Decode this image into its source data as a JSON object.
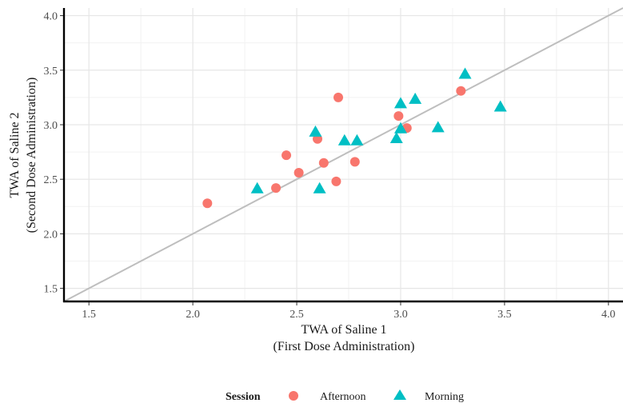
{
  "chart_data": {
    "type": "scatter",
    "x_title_lines": [
      "TWA of Saline 1",
      "(First Dose Administration)"
    ],
    "y_title_lines": [
      "TWA of Saline 2",
      "(Second Dose Administration)"
    ],
    "xlim": [
      1.38,
      4.07
    ],
    "ylim": [
      1.38,
      4.07
    ],
    "x_ticks": [
      1.5,
      2.0,
      2.5,
      3.0,
      3.5,
      4.0
    ],
    "x_tick_labels": [
      "1.5",
      "2.0",
      "2.5",
      "3.0",
      "3.5",
      "4.0"
    ],
    "y_ticks": [
      1.5,
      2.0,
      2.5,
      3.0,
      3.5,
      4.0
    ],
    "y_tick_labels": [
      "1.5",
      "2.0",
      "2.5",
      "3.0",
      "3.5",
      "4.0"
    ],
    "grid": true,
    "reference_line": {
      "type": "identity",
      "color": "#bebebe"
    },
    "legend": {
      "title": "Session",
      "position": "bottom",
      "entries": [
        "Afternoon",
        "Morning"
      ]
    },
    "series": [
      {
        "name": "Afternoon",
        "marker": "circle",
        "color": "#F8766D",
        "points": [
          [
            2.07,
            2.28
          ],
          [
            2.4,
            2.42
          ],
          [
            2.45,
            2.72
          ],
          [
            2.51,
            2.56
          ],
          [
            2.6,
            2.87
          ],
          [
            2.63,
            2.65
          ],
          [
            2.69,
            2.48
          ],
          [
            2.7,
            3.25
          ],
          [
            2.78,
            2.66
          ],
          [
            2.99,
            3.08
          ],
          [
            3.03,
            2.97
          ],
          [
            3.29,
            3.31
          ]
        ]
      },
      {
        "name": "Morning",
        "marker": "triangle",
        "color": "#00BFC4",
        "points": [
          [
            2.31,
            2.41
          ],
          [
            2.59,
            2.93
          ],
          [
            2.61,
            2.41
          ],
          [
            2.73,
            2.85
          ],
          [
            2.79,
            2.85
          ],
          [
            2.98,
            2.87
          ],
          [
            3.0,
            3.19
          ],
          [
            3.0,
            2.96
          ],
          [
            3.07,
            3.23
          ],
          [
            3.18,
            2.97
          ],
          [
            3.31,
            3.46
          ],
          [
            3.48,
            3.16
          ]
        ]
      }
    ]
  }
}
